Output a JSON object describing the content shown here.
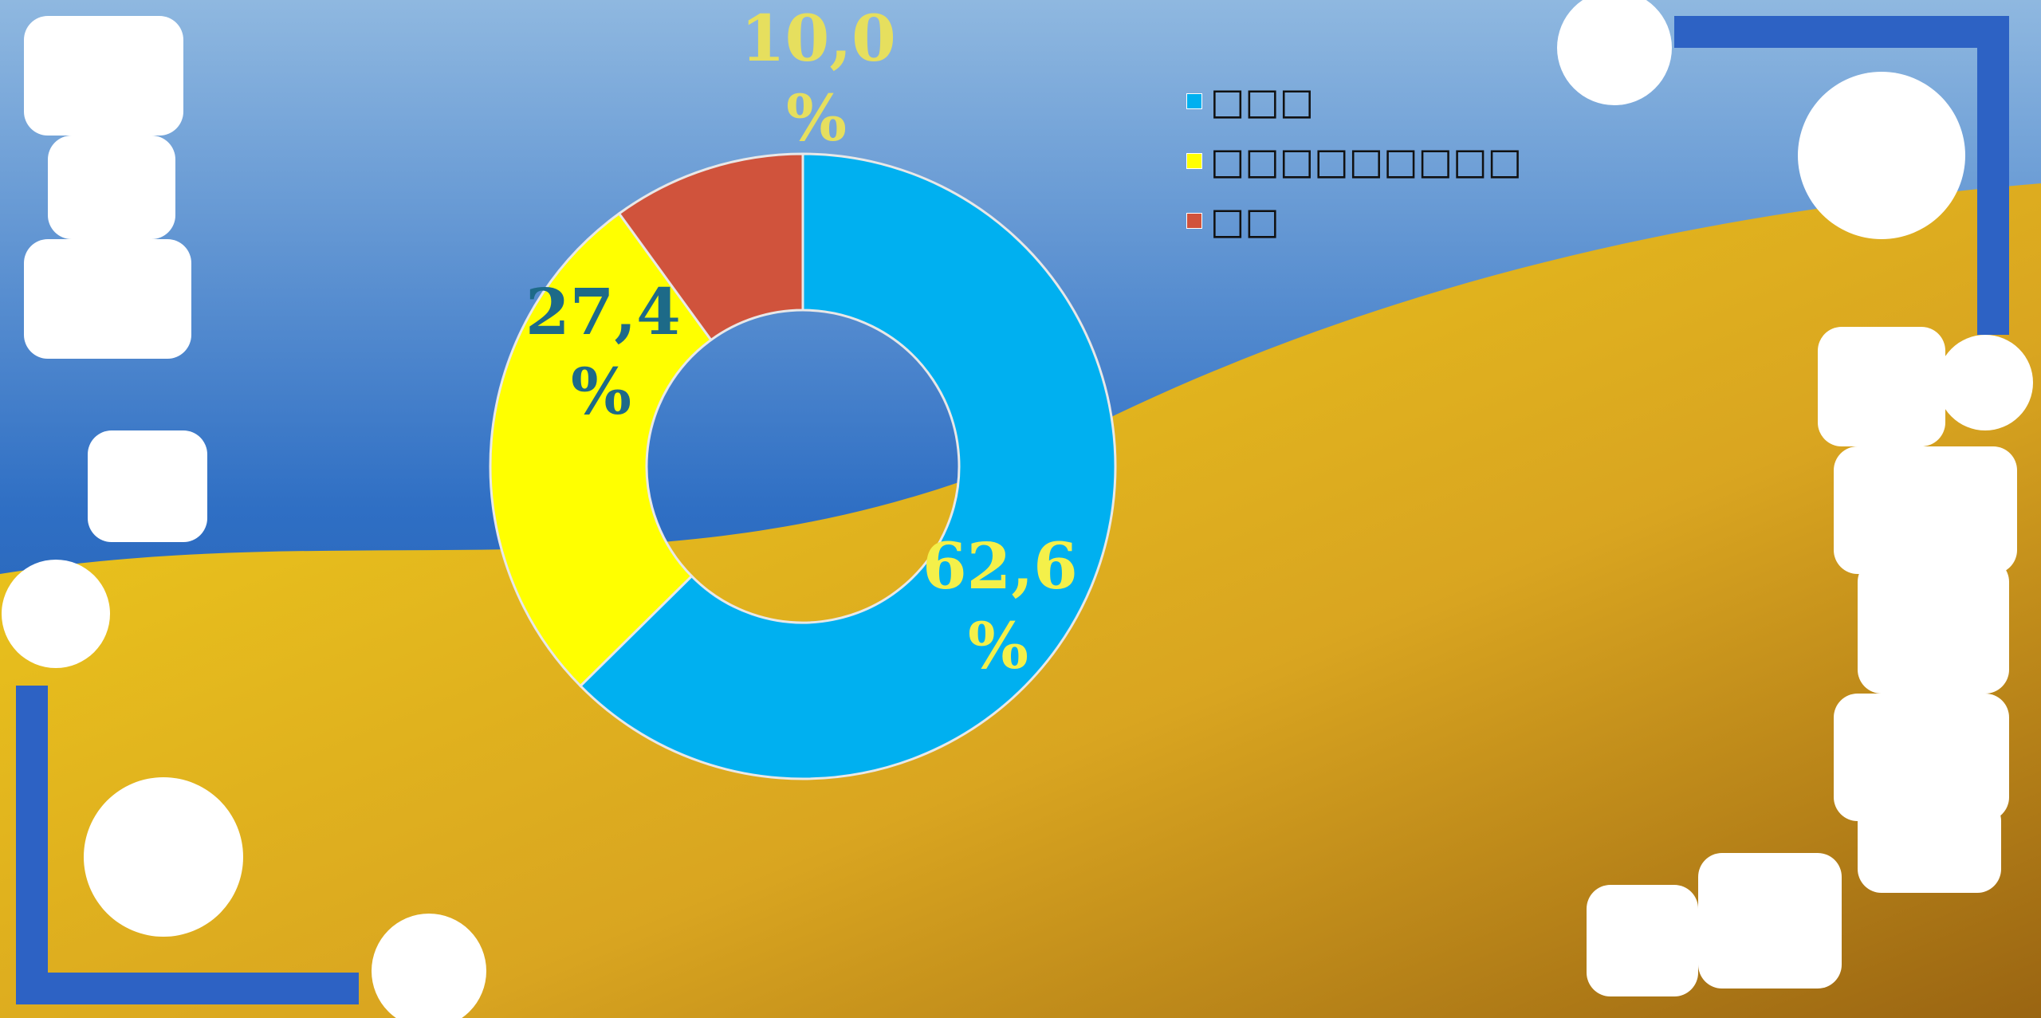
{
  "chart_data": {
    "type": "donut",
    "categories": [
      "□□□",
      "□□□□□□□□□",
      "□□"
    ],
    "values": [
      62.6,
      27.4,
      10.0
    ],
    "value_labels": [
      "62,6 %",
      "27,4 %",
      "10,0 %"
    ],
    "colors": [
      "#00b0f0",
      "#ffff00",
      "#d0533c"
    ],
    "legend": "top-right"
  }
}
